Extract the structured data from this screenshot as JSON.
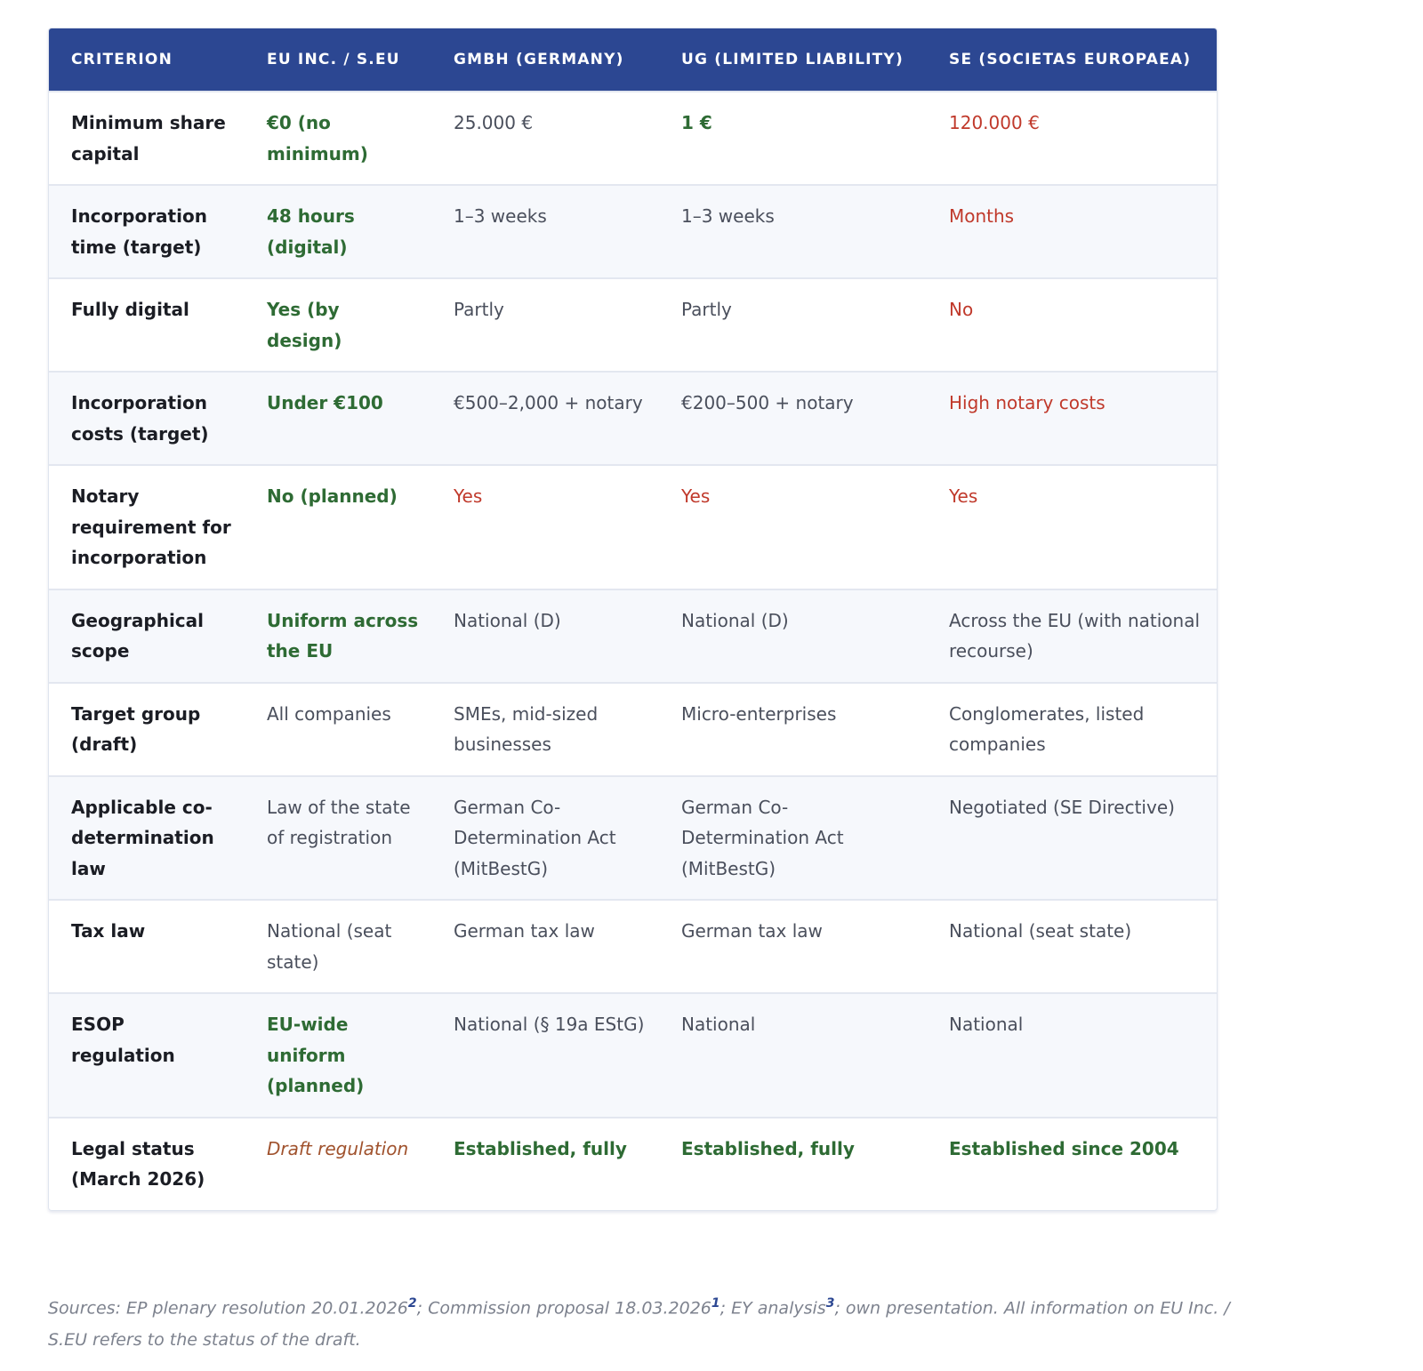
{
  "colors": {
    "header_bg": "#2c4792",
    "positive": "#2e6b34",
    "negative": "#c0392b",
    "draft": "#a0522d"
  },
  "table": {
    "headers": [
      "CRITERION",
      "EU INC. / S.EU",
      "GMBH (GERMANY)",
      "UG (LIMITED LIABILITY)",
      "SE (SOCIETAS EUROPAEA)"
    ],
    "rows": [
      {
        "cells": [
          "Minimum share capital",
          "€0 (no minimum)",
          "25.000 €",
          "1 €",
          "120.000 €"
        ],
        "styles": [
          "crit",
          "good",
          "",
          "good",
          "bad"
        ]
      },
      {
        "cells": [
          "Incorporation time (target)",
          "48 hours (digital)",
          "1–3 weeks",
          "1–3 weeks",
          "Months"
        ],
        "styles": [
          "crit",
          "good",
          "",
          "",
          "bad"
        ]
      },
      {
        "cells": [
          "Fully digital",
          "Yes (by design)",
          "Partly",
          "Partly",
          "No"
        ],
        "styles": [
          "crit",
          "good",
          "",
          "",
          "bad"
        ]
      },
      {
        "cells": [
          "Incorporation costs (target)",
          "Under €100",
          "€500–2,000 + notary",
          "€200–500 + notary",
          "High notary costs"
        ],
        "styles": [
          "crit",
          "good",
          "",
          "",
          "bad"
        ]
      },
      {
        "cells": [
          "Notary requirement for incorporation",
          "No (planned)",
          "Yes",
          "Yes",
          "Yes"
        ],
        "styles": [
          "crit",
          "good",
          "bad",
          "bad",
          "bad"
        ]
      },
      {
        "cells": [
          "Geographical scope",
          "Uniform across the EU",
          "National (D)",
          "National (D)",
          "Across the EU (with national recourse)"
        ],
        "styles": [
          "crit",
          "good",
          "",
          "",
          ""
        ]
      },
      {
        "cells": [
          "Target group (draft)",
          "All companies",
          "SMEs, mid-sized businesses",
          "Micro-enterprises",
          "Conglomerates, listed companies"
        ],
        "styles": [
          "crit",
          "",
          "",
          "",
          ""
        ]
      },
      {
        "cells": [
          "Applicable co-determination law",
          "Law of the state of registration",
          "German Co-Determination Act (MitBestG)",
          "German Co-Determination Act (MitBestG)",
          "Negotiated (SE Directive)"
        ],
        "styles": [
          "crit",
          "",
          "",
          "",
          ""
        ]
      },
      {
        "cells": [
          "Tax law",
          "National (seat state)",
          "German tax law",
          "German tax law",
          "National (seat state)"
        ],
        "styles": [
          "crit",
          "",
          "",
          "",
          ""
        ]
      },
      {
        "cells": [
          "ESOP regulation",
          "EU-wide uniform (planned)",
          "National (§ 19a EStG)",
          "National",
          "National"
        ],
        "styles": [
          "crit",
          "good",
          "",
          "",
          ""
        ]
      },
      {
        "cells": [
          "Legal status (March 2026)",
          "Draft regulation",
          "Established, fully",
          "Established, fully",
          "Established since 2004"
        ],
        "styles": [
          "crit",
          "draft",
          "good",
          "good",
          "good"
        ]
      }
    ]
  },
  "footnote": {
    "p1": "Sources: EP plenary resolution 20.01.2026",
    "s1": "2",
    "p2": "; Commission proposal 18.03.2026",
    "s2": "1",
    "p3": "; EY analysis",
    "s3": "3",
    "p4": "; own presentation. All information on EU Inc. / S.EU refers to the status of the draft."
  }
}
